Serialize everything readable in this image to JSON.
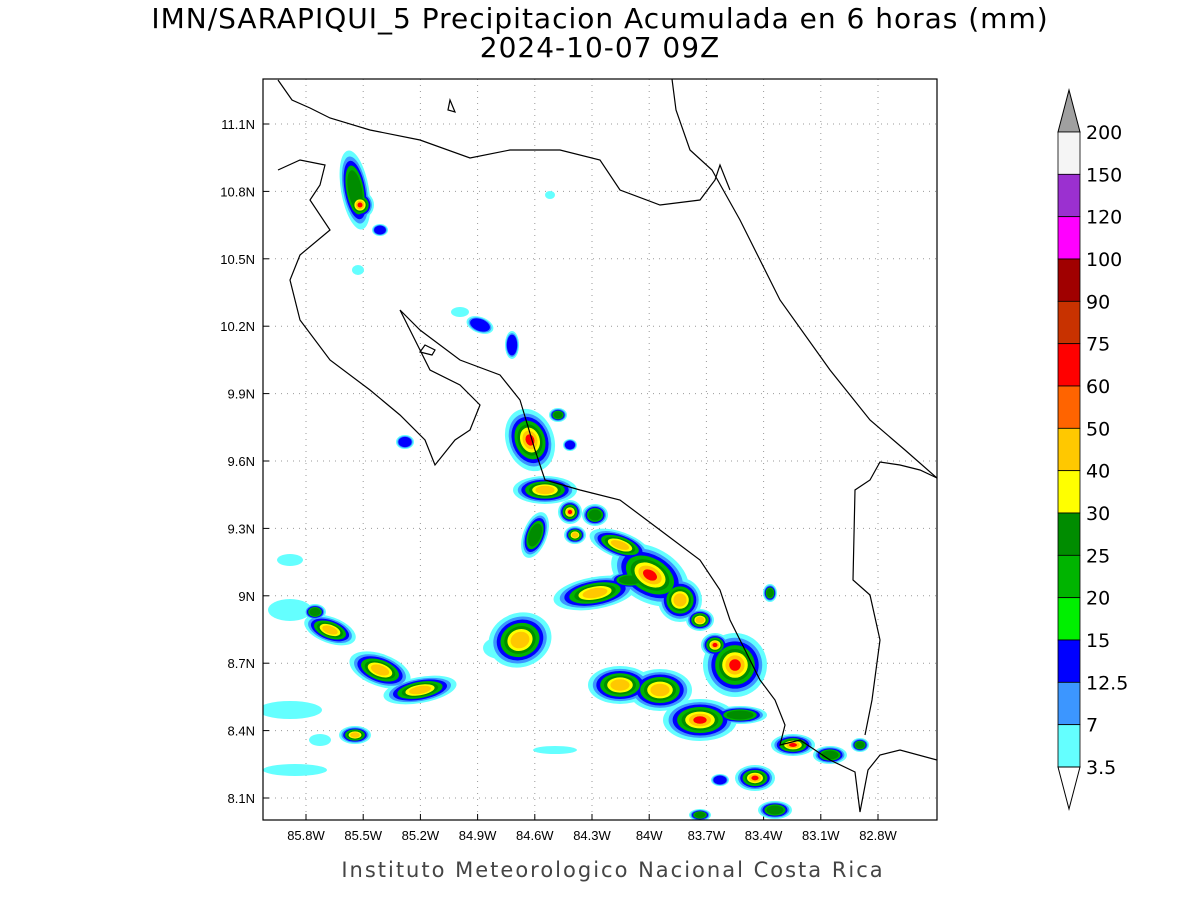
{
  "header": {
    "title": "IMN/SARAPIQUI_5 Precipitacion Acumulada en 6 horas (mm)",
    "subtitle": "2024-10-07 09Z"
  },
  "map": {
    "lat_labels": [
      "11.1N",
      "10.8N",
      "10.5N",
      "10.2N",
      "9.9N",
      "9.6N",
      "9.3N",
      "9N",
      "8.7N",
      "8.4N",
      "8.1N"
    ],
    "lon_labels": [
      "85.8W",
      "85.5W",
      "85.2W",
      "84.9W",
      "84.6W",
      "84.3W",
      "84W",
      "83.7W",
      "83.4W",
      "83.1W",
      "82.8W"
    ]
  },
  "colorbar": {
    "labels": [
      "200",
      "150",
      "120",
      "100",
      "90",
      "75",
      "60",
      "50",
      "40",
      "30",
      "25",
      "20",
      "15",
      "12.5",
      "7",
      "3.5"
    ],
    "colors": [
      "#f5f5f5",
      "#9b30d0",
      "#ff00ff",
      "#a00000",
      "#c83200",
      "#ff0000",
      "#ff6400",
      "#ffc800",
      "#ffff00",
      "#008c00",
      "#00b400",
      "#00f000",
      "#0000ff",
      "#3c96ff",
      "#64ffff"
    ],
    "over_color": "#a0a0a0",
    "under_color": "#ffffff"
  },
  "footer": {
    "credit": "Instituto Meteorologico Nacional Costa Rica"
  }
}
